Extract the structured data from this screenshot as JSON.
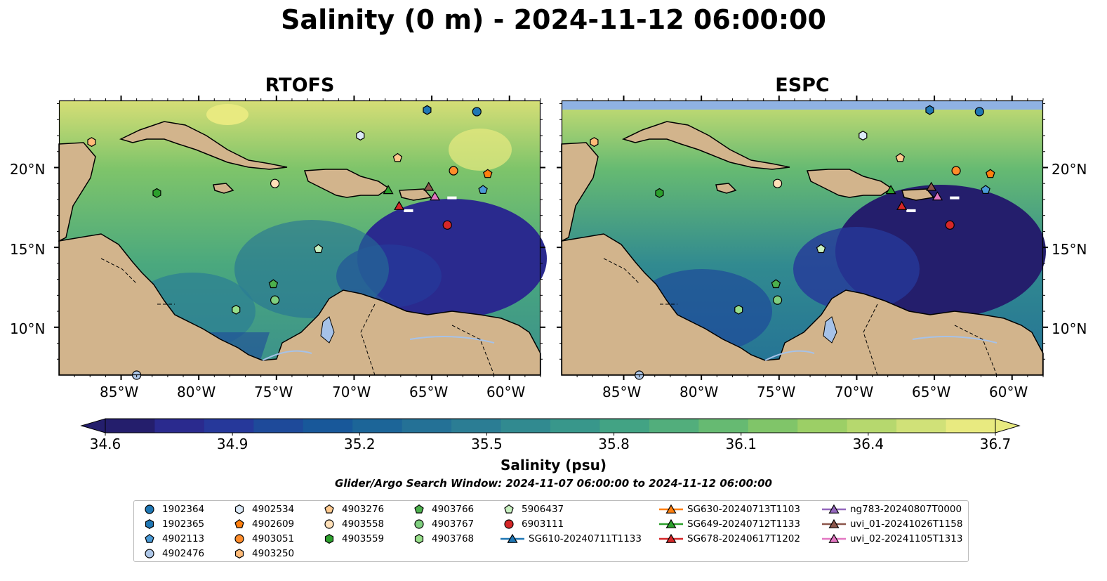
{
  "title": "Salinity (0 m) - 2024-11-12 06:00:00",
  "panels": [
    {
      "title": "RTOFS"
    },
    {
      "title": "ESPC"
    }
  ],
  "lon_ticks": [
    "85°W",
    "80°W",
    "75°W",
    "70°W",
    "65°W",
    "60°W"
  ],
  "lat_ticks": [
    "20°N",
    "15°N",
    "10°N"
  ],
  "colorbar": {
    "label": "Salinity (psu)",
    "ticks": [
      "34.6",
      "34.9",
      "35.2",
      "35.5",
      "35.8",
      "36.1",
      "36.4",
      "36.7"
    ],
    "min": 34.6,
    "max": 36.7,
    "colors": [
      "#241e6c",
      "#2a2a8e",
      "#26389a",
      "#1e4a9a",
      "#18589a",
      "#1c6598",
      "#247196",
      "#2b7d94",
      "#318a90",
      "#38978b",
      "#42a384",
      "#52ae7c",
      "#66ba72",
      "#80c569",
      "#9ccf66",
      "#b6d86e",
      "#d0e178",
      "#e8ea80"
    ]
  },
  "search_window": "Glider/Argo Search Window: 2024-11-07 06:00:00 to 2024-11-12 06:00:00",
  "map_colors": {
    "land": "#d2b48c",
    "fresh": "#a6c2e8",
    "espc_nodata": "#8fb2e3"
  },
  "legend": [
    {
      "label": "1902364",
      "marker": "circle",
      "color": "#1f77b4"
    },
    {
      "label": "1902365",
      "marker": "hexagon",
      "color": "#1f77b4"
    },
    {
      "label": "4902113",
      "marker": "pentagon",
      "color": "#4a9ad6"
    },
    {
      "label": "4902476",
      "marker": "circle",
      "color": "#aec7e8"
    },
    {
      "label": "4902534",
      "marker": "hexagon",
      "color": "#dceaf8"
    },
    {
      "label": "4902609",
      "marker": "pentagon",
      "color": "#ff7f0e"
    },
    {
      "label": "4903051",
      "marker": "circle",
      "color": "#ff8c2a"
    },
    {
      "label": "4903250",
      "marker": "hexagon",
      "color": "#ffbb78"
    },
    {
      "label": "4903276",
      "marker": "pentagon",
      "color": "#ffc98e"
    },
    {
      "label": "4903558",
      "marker": "circle",
      "color": "#ffe0b8"
    },
    {
      "label": "4903559",
      "marker": "hexagon",
      "color": "#2ca02c"
    },
    {
      "label": "4903766",
      "marker": "pentagon",
      "color": "#4cb04c"
    },
    {
      "label": "4903767",
      "marker": "circle",
      "color": "#7fcf7f"
    },
    {
      "label": "4903768",
      "marker": "hexagon",
      "color": "#98df8a"
    },
    {
      "label": "5906437",
      "marker": "pentagon",
      "color": "#c8f0c0"
    },
    {
      "label": "6903111",
      "marker": "circle",
      "color": "#d62728"
    },
    {
      "label": "SG610-20240711T1133",
      "marker": "triangle",
      "color": "#1f77b4"
    },
    {
      "label": "SG630-20240713T1103",
      "marker": "triangle",
      "color": "#ff7f0e"
    },
    {
      "label": "SG649-20240712T1133",
      "marker": "triangle",
      "color": "#2ca02c"
    },
    {
      "label": "SG678-20240617T1202",
      "marker": "triangle",
      "color": "#d62728"
    },
    {
      "label": "ng783-20240807T0000",
      "marker": "triangle",
      "color": "#9467bd"
    },
    {
      "label": "uvi_01-20241026T1158",
      "marker": "triangle",
      "color": "#8c564b"
    },
    {
      "label": "uvi_02-20241105T1313",
      "marker": "triangle",
      "color": "#e377c2"
    }
  ]
}
